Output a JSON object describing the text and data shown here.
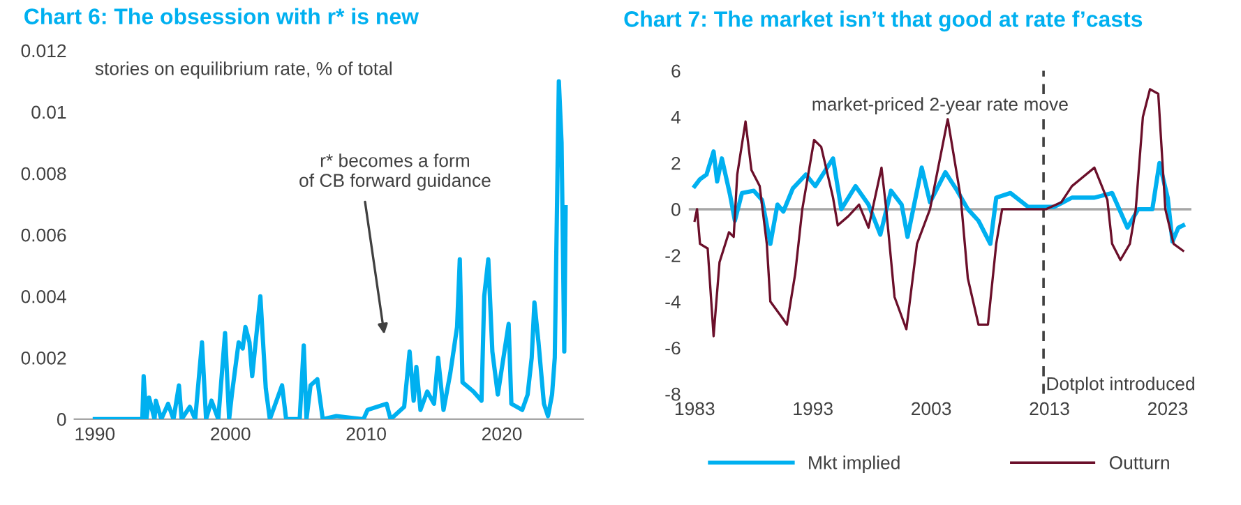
{
  "chart_data": [
    {
      "type": "line",
      "title": "Chart 6: The obsession with r* is new",
      "xlim": [
        1988.5,
        2026
      ],
      "ylim": [
        0,
        0.012
      ],
      "xticks": [
        1990,
        2000,
        2010,
        2020
      ],
      "yticks": [
        0,
        0.002,
        0.004,
        0.006,
        0.008,
        0.01,
        0.012
      ],
      "grid": false,
      "legend": false,
      "annotations": [
        "stories on equilibrium rate, % of total",
        "r* becomes a form\nof CB forward guidance"
      ],
      "series": [
        {
          "color": "#00b0f0",
          "x": [
            1990,
            1993.5,
            1993.6,
            1993.8,
            1994.0,
            1994.4,
            1994.5,
            1994.9,
            1995.4,
            1995.8,
            1996.2,
            1996.4,
            1997.0,
            1997.4,
            1997.9,
            1998.2,
            1998.6,
            1999.1,
            1999.6,
            1999.9,
            2000.1,
            2000.6,
            2000.9,
            2001.1,
            2001.4,
            2001.6,
            2001.9,
            2002.2,
            2002.6,
            2002.9,
            2003.8,
            2004.1,
            2005.1,
            2005.4,
            2005.6,
            2005.9,
            2006.4,
            2006.8,
            2007.8,
            2009.8,
            2010.1,
            2011.5,
            2011.8,
            2012.8,
            2013.2,
            2013.5,
            2013.7,
            2014.0,
            2014.5,
            2015.0,
            2015.3,
            2015.7,
            2016.2,
            2016.7,
            2016.9,
            2017.1,
            2017.9,
            2018.5,
            2018.7,
            2019.0,
            2019.3,
            2019.7,
            2020.5,
            2020.7,
            2021.5,
            2021.9,
            2022.2,
            2022.4,
            2022.7,
            2023.1,
            2023.4,
            2023.7,
            2023.9,
            2024.2,
            2024.4,
            2024.6,
            2024.7
          ],
          "values": [
            0,
            0,
            0.0014,
            0,
            0.0007,
            0,
            0.0006,
            0,
            0.0005,
            0,
            0.0011,
            0,
            0.0004,
            0,
            0.0025,
            0,
            0.0006,
            0,
            0.0028,
            0,
            0.0008,
            0.0025,
            0.0023,
            0.003,
            0.0025,
            0.0014,
            0.0027,
            0.004,
            0.001,
            0,
            0.0011,
            0,
            0,
            0.0024,
            0,
            0.0011,
            0.0013,
            0,
            0.0001,
            0,
            0.0003,
            0.0005,
            0,
            0.0004,
            0.0022,
            0.0006,
            0.0017,
            0.0003,
            0.0009,
            0.0005,
            0.002,
            0.0003,
            0.0015,
            0.003,
            0.0052,
            0.0012,
            0.0009,
            0.0006,
            0.004,
            0.0052,
            0.0022,
            0.0008,
            0.0031,
            0.0005,
            0.0003,
            0.0008,
            0.002,
            0.0038,
            0.0025,
            0.0005,
            0.0001,
            0.0008,
            0.002,
            0.011,
            0.009,
            0.0022,
            0.0069
          ]
        }
      ]
    },
    {
      "type": "line",
      "title": "Chart 7: The market isn’t that good at rate f’casts",
      "xlim": [
        1982.5,
        2025
      ],
      "ylim": [
        -8,
        6
      ],
      "xticks": [
        1983,
        1993,
        2003,
        2013,
        2023
      ],
      "yticks": [
        -8,
        -6,
        -4,
        -2,
        0,
        2,
        4,
        6
      ],
      "grid": false,
      "legend": "bottom",
      "annotations": [
        "market-priced 2-year rate move"
      ],
      "ref_lines": [
        {
          "axis": "y",
          "value": 0,
          "color": "#a6a6a6",
          "line_style": "solid"
        },
        {
          "axis": "x",
          "value": 2012.5,
          "label": "Dotplot introduced",
          "color": "#404040",
          "line_style": "dashed"
        }
      ],
      "series": [
        {
          "name": "Mkt implied",
          "color": "#00b0f0",
          "x": [
            1983.0,
            1983.45,
            1984.0,
            1984.6,
            1984.9,
            1985.3,
            1986.0,
            1986.4,
            1987.0,
            1988.0,
            1988.7,
            1989.4,
            1990.0,
            1990.5,
            1991.3,
            1992.4,
            1993.2,
            1994.7,
            1995.4,
            1996.6,
            1997.7,
            1998.7,
            1999.6,
            2000.5,
            2001.0,
            2002.2,
            2002.9,
            2004.2,
            2005.2,
            2006.1,
            2007.0,
            2008.0,
            2008.5,
            2009.7,
            2011.2,
            2013.4,
            2014.9,
            2016.8,
            2018.3,
            2019.6,
            2020.5,
            2021.7,
            2022.3,
            2023.0,
            2023.4,
            2023.9,
            2024.3
          ],
          "values": [
            1.0,
            1.3,
            1.5,
            2.5,
            1.2,
            2.2,
            0.6,
            -0.5,
            0.7,
            0.8,
            0.4,
            -1.5,
            0.2,
            -0.1,
            0.9,
            1.5,
            1.0,
            2.2,
            0.0,
            1.0,
            0.2,
            -1.1,
            0.8,
            0.2,
            -1.2,
            1.8,
            0.3,
            1.6,
            0.8,
            0.0,
            -0.5,
            -1.5,
            0.5,
            0.7,
            0.1,
            0.1,
            0.5,
            0.5,
            0.7,
            -0.8,
            0,
            0,
            2.0,
            0.5,
            -1.4,
            -0.8,
            -0.7
          ]
        },
        {
          "name": "Outturn",
          "color": "#6b0f2a",
          "x": [
            1983.0,
            1983.2,
            1983.45,
            1984.1,
            1984.6,
            1985.1,
            1985.9,
            1986.3,
            1986.6,
            1987.3,
            1987.8,
            1988.5,
            1989.1,
            1989.4,
            1990.4,
            1990.8,
            1991.5,
            1992.1,
            1993.1,
            1993.7,
            1994.7,
            1995.1,
            1996.0,
            1996.9,
            1997.7,
            1998.8,
            1999.2,
            1999.9,
            2000.9,
            2001.8,
            2002.9,
            2004.4,
            2005.5,
            2006.1,
            2007.0,
            2007.8,
            2008.5,
            2009.0,
            2010.0,
            2012.7,
            2014.0,
            2014.9,
            2016.8,
            2017.9,
            2018.3,
            2019.0,
            2019.8,
            2020.3,
            2020.9,
            2021.5,
            2022.2,
            2022.8,
            2023.5,
            2024.3
          ],
          "values": [
            -0.5,
            0,
            -1.5,
            -1.7,
            -5.5,
            -2.3,
            -1.0,
            -1.2,
            1.5,
            3.8,
            1.7,
            1.0,
            -1.5,
            -4.0,
            -4.7,
            -5.0,
            -2.8,
            0,
            3.0,
            2.7,
            0.5,
            -0.7,
            -0.3,
            0.2,
            -0.8,
            1.8,
            0,
            -3.8,
            -5.2,
            -1.5,
            0,
            3.9,
            0.5,
            -3.0,
            -5.0,
            -5.0,
            -1.5,
            0,
            0,
            0,
            0.3,
            1.0,
            1.8,
            0.4,
            -1.5,
            -2.2,
            -1.5,
            0,
            4.0,
            5.2,
            5.0,
            0,
            -1.5,
            -1.8
          ]
        }
      ]
    }
  ]
}
